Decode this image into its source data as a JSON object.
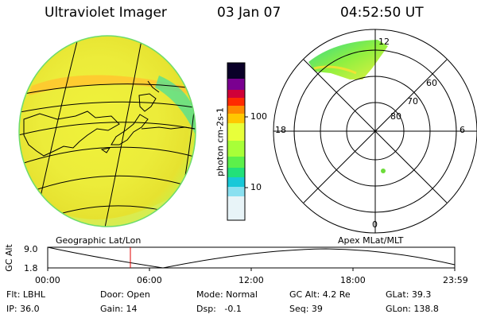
{
  "header": {
    "title": "Ultraviolet Imager",
    "date": "03 Jan 07",
    "time": "04:52:50 UT"
  },
  "colorbar": {
    "label": "photon cm-2s-1",
    "ticks": [
      "100",
      "10"
    ],
    "colors": [
      "#000020",
      "#3a0060",
      "#8a008a",
      "#d0003c",
      "#ff2a00",
      "#ff8a00",
      "#ffc800",
      "#e8ff3a",
      "#8cff3a",
      "#22e07a",
      "#18c8d8",
      "#8ae0f0",
      "#e8f4f8"
    ]
  },
  "polar": {
    "labels": {
      "top": "12",
      "left": "18",
      "right": "6",
      "bottom": "0"
    },
    "rings": [
      "60",
      "70",
      "80"
    ]
  },
  "timeline": {
    "left_label": "Geographic Lat/Lon",
    "right_label": "Apex MLat/MLT",
    "axis_label": "GC Alt",
    "y_ticks": [
      "9.0",
      "1.8"
    ],
    "x_ticks": [
      "00:00",
      "06:00",
      "12:00",
      "18:00",
      "23:59"
    ],
    "marker_time": "04:52"
  },
  "info": {
    "row1": [
      "Flt: LBHL",
      "Door: Open",
      "Mode: Normal",
      "GC Alt: 4.2 Re",
      "GLat: 39.3"
    ],
    "row2": [
      "IP: 36.0",
      "Gain: 14",
      "Dsp:   -0.1",
      "Seq: 39",
      "GLon: 138.8"
    ]
  }
}
